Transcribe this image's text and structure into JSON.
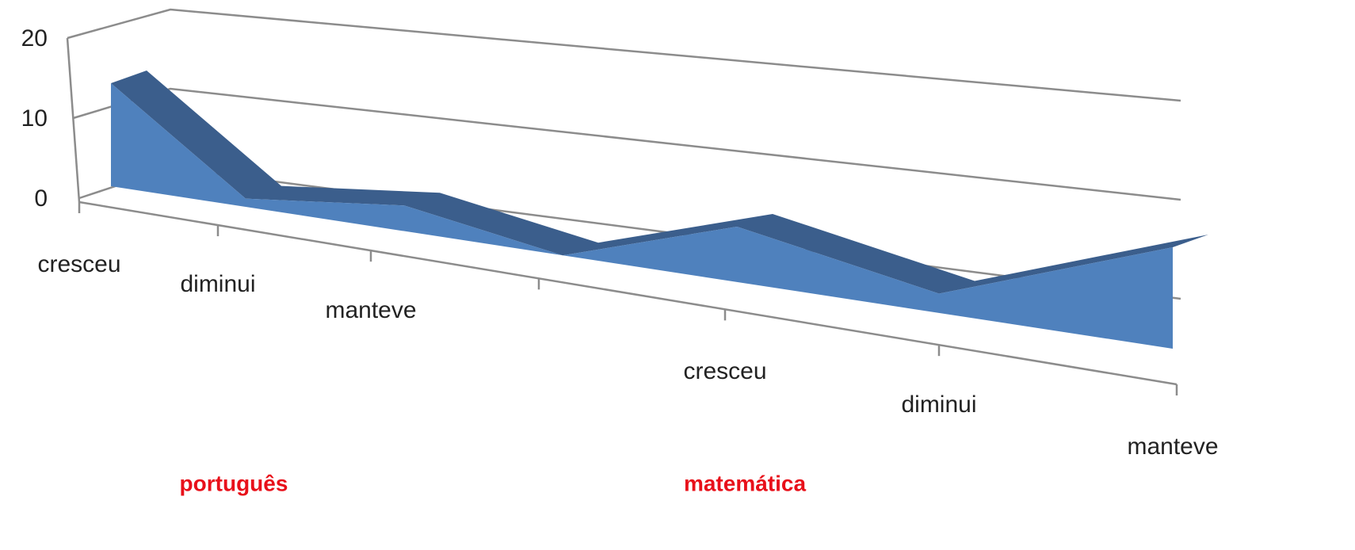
{
  "chart_data": {
    "type": "area3d",
    "categories": [
      "cresceu",
      "diminui",
      "manteve",
      null,
      "cresceu",
      "diminui",
      "manteve"
    ],
    "groups": [
      "português",
      "matemática"
    ],
    "values": [
      13,
      1,
      3,
      0,
      6,
      2,
      10
    ],
    "color": "#4f81bd",
    "top_color": "#3b5e8c",
    "ylim": [
      0,
      20
    ],
    "yticks": [
      0,
      10,
      20
    ],
    "grid": true
  }
}
